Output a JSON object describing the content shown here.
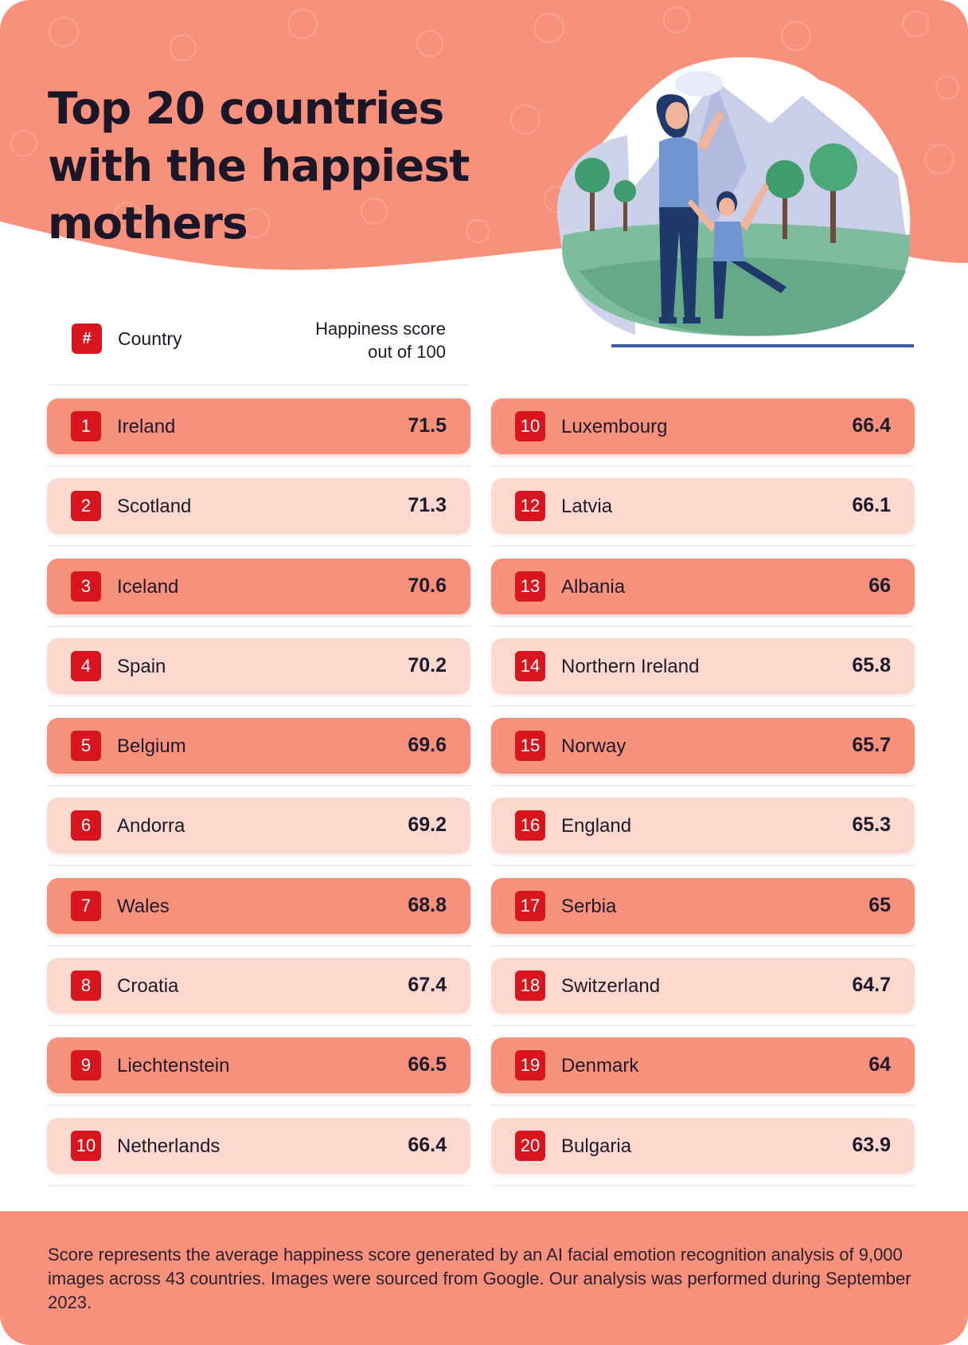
{
  "header": {
    "title": "Top 20 countries with the happiest mothers"
  },
  "table_header": {
    "rank_symbol": "#",
    "country_label": "Country",
    "score_label_line1": "Happiness score",
    "score_label_line2": "out of 100"
  },
  "footer": {
    "note": "Score represents the average happiness score generated by an AI facial emotion recognition analysis of 9,000 images across 43 countries. Images were sourced from Google. Our analysis was performed during September 2023."
  },
  "colors": {
    "accent": "#d8141e",
    "row_dark": "#f8917b",
    "row_light": "#fdd8cf",
    "header_bg": "#f8917b"
  },
  "chart_data": {
    "type": "table",
    "title": "Top 20 countries with the happiest mothers",
    "columns": [
      "#",
      "Country",
      "Happiness score out of 100"
    ],
    "rows": [
      {
        "rank": "1",
        "country": "Ireland",
        "score": "71.5"
      },
      {
        "rank": "2",
        "country": "Scotland",
        "score": "71.3"
      },
      {
        "rank": "3",
        "country": "Iceland",
        "score": "70.6"
      },
      {
        "rank": "4",
        "country": "Spain",
        "score": "70.2"
      },
      {
        "rank": "5",
        "country": "Belgium",
        "score": "69.6"
      },
      {
        "rank": "6",
        "country": "Andorra",
        "score": "69.2"
      },
      {
        "rank": "7",
        "country": "Wales",
        "score": "68.8"
      },
      {
        "rank": "8",
        "country": "Croatia",
        "score": "67.4"
      },
      {
        "rank": "9",
        "country": "Liechtenstein",
        "score": "66.5"
      },
      {
        "rank": "10",
        "country": "Netherlands",
        "score": "66.4"
      },
      {
        "rank": "10",
        "country": "Luxembourg",
        "score": "66.4"
      },
      {
        "rank": "12",
        "country": "Latvia",
        "score": "66.1"
      },
      {
        "rank": "13",
        "country": "Albania",
        "score": "66"
      },
      {
        "rank": "14",
        "country": "Northern Ireland",
        "score": "65.8"
      },
      {
        "rank": "15",
        "country": "Norway",
        "score": "65.7"
      },
      {
        "rank": "16",
        "country": "England",
        "score": "65.3"
      },
      {
        "rank": "17",
        "country": "Serbia",
        "score": "65"
      },
      {
        "rank": "18",
        "country": "Switzerland",
        "score": "64.7"
      },
      {
        "rank": "19",
        "country": "Denmark",
        "score": "64"
      },
      {
        "rank": "20",
        "country": "Bulgaria",
        "score": "63.9"
      }
    ]
  }
}
